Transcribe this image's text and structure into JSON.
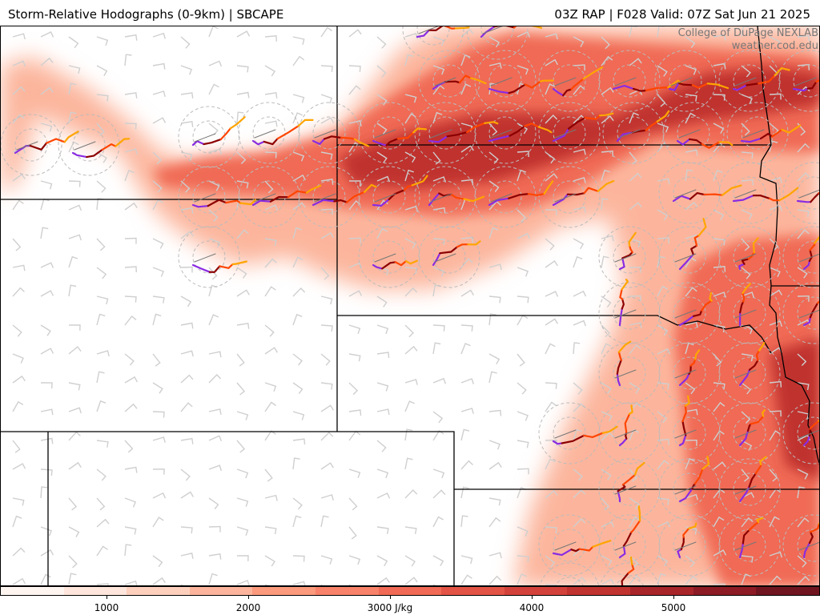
{
  "header": {
    "title_left": "Storm-Relative Hodographs (0-9km) | SBCAPE",
    "title_right": "03Z RAP | F028 Valid: 07Z Sat Jun 21 2025"
  },
  "credit": {
    "line1": "College of DuPage NEXLAB",
    "line2": "weather.cod.edu"
  },
  "colorbar": {
    "colors": [
      "#fff5f0",
      "#fee6dc",
      "#fdd0bd",
      "#fcb59c",
      "#fb9a7d",
      "#f8826a",
      "#f06a55",
      "#e35446",
      "#d3423a",
      "#c0332f",
      "#a8252a",
      "#8c1b25",
      "#6f1520"
    ],
    "labels": [
      "1000",
      "2000",
      "3000 J/kg",
      "4000",
      "5000"
    ]
  },
  "map": {
    "cape_color_light": "#fcb59c",
    "cape_color_mid": "#f06a55",
    "cape_color_dark": "#c0332f",
    "hodo_colors": [
      "#8a2be2",
      "#8b0000",
      "#ff4500",
      "#ffa500"
    ],
    "barb_color": "#cfcfcf"
  }
}
